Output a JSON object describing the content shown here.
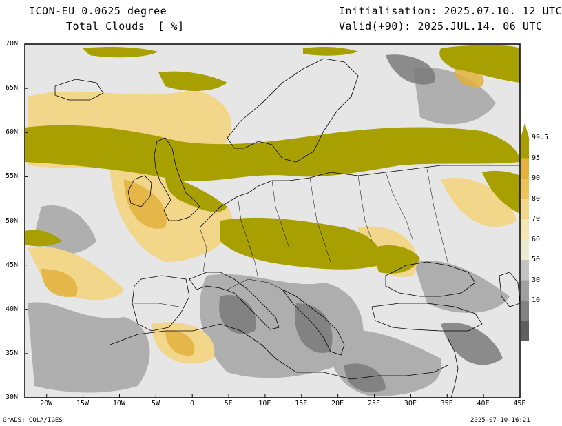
{
  "header": {
    "model": "ICON-EU 0.0625 degree",
    "field": "Total Clouds  [ %]",
    "init": "Initialisation: 2025.07.10. 12 UTC",
    "valid": "Valid(+90): 2025.JUL.14. 06 UTC"
  },
  "footer": {
    "software": "GrADS: COLA/IGES",
    "timestamp": "2025-07-10-16:21"
  },
  "axes": {
    "lat_labels": [
      "70N",
      "65N",
      "60N",
      "55N",
      "50N",
      "45N",
      "40N",
      "35N",
      "30N"
    ],
    "lon_labels": [
      "20W",
      "15W",
      "10W",
      "5W",
      "0",
      "5E",
      "10E",
      "15E",
      "20E",
      "25E",
      "30E",
      "35E",
      "40E",
      "45E"
    ],
    "lat_range": [
      30,
      70
    ],
    "lon_range": [
      -23,
      45
    ]
  },
  "colorbar": {
    "labels": [
      "99.5",
      "95",
      "90",
      "80",
      "70",
      "60",
      "50",
      "30",
      "10"
    ],
    "colors": [
      "#a8a000",
      "#e3b23c",
      "#eec35e",
      "#f2d68a",
      "#f5e6b1",
      "#ecebd0",
      "#c4c4c4",
      "#a0a0a0",
      "#828282",
      "#5f5f5f"
    ]
  },
  "colors": {
    "land_clear": "#e6e6e6",
    "coast": "#000000"
  }
}
